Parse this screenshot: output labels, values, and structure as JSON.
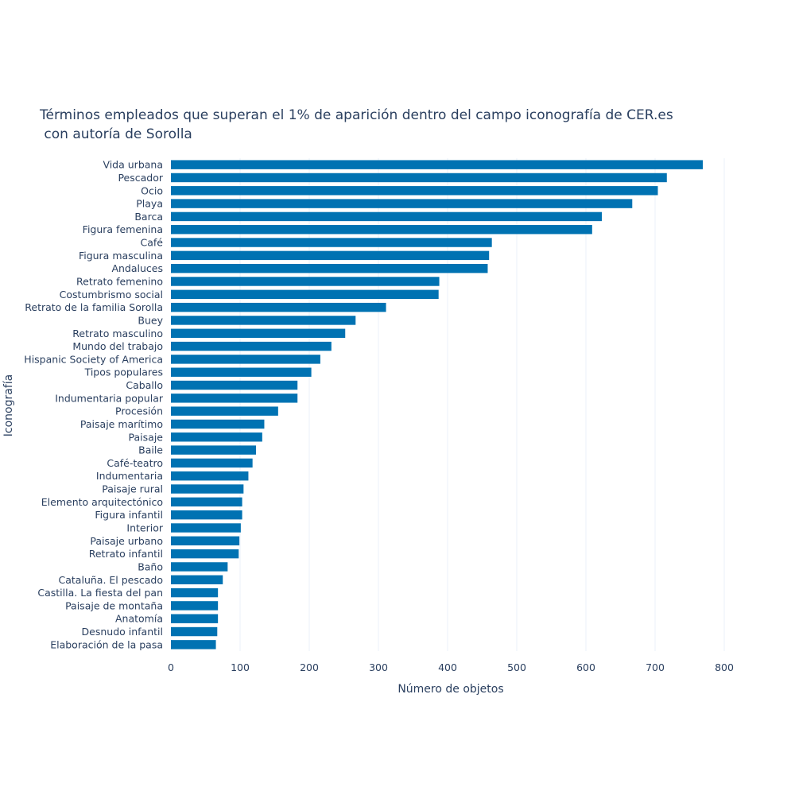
{
  "chart_data": {
    "type": "bar",
    "orientation": "horizontal",
    "title_line1": "Términos empleados que superan el 1% de aparición dentro del campo iconografía de CER.es",
    "title_line2": " con autoría de Sorolla",
    "xlabel": "Número de objetos",
    "ylabel": "Iconografía",
    "xlim": [
      0,
      800
    ],
    "xticks": [
      0,
      100,
      200,
      300,
      400,
      500,
      600,
      700,
      800
    ],
    "grid": true,
    "bar_color": "#0072b2",
    "categories": [
      "Vida urbana",
      "Pescador",
      "Ocio",
      "Playa",
      "Barca",
      "Figura femenina",
      "Café",
      "Figura masculina",
      "Andaluces",
      "Retrato femenino",
      "Costumbrismo social",
      "Retrato de la familia Sorolla",
      "Buey",
      "Retrato masculino",
      "Mundo del trabajo",
      "Hispanic Society of America",
      "Tipos populares",
      "Caballo",
      "Indumentaria popular",
      "Procesión",
      "Paisaje marítimo",
      "Paisaje",
      "Baile",
      "Café-teatro",
      "Indumentaria",
      "Paisaje rural",
      "Elemento arquitectónico",
      "Figura infantil",
      "Interior",
      "Paisaje urbano",
      "Retrato infantil",
      "Baño",
      "Cataluña. El pescado",
      "Castilla. La fiesta del pan",
      "Paisaje de montaña",
      "Anatomía",
      "Desnudo infantil",
      "Elaboración de la pasa"
    ],
    "values": [
      769,
      717,
      704,
      667,
      623,
      609,
      464,
      460,
      458,
      388,
      387,
      311,
      267,
      252,
      232,
      216,
      203,
      183,
      183,
      155,
      135,
      132,
      123,
      118,
      112,
      105,
      103,
      103,
      101,
      99,
      98,
      82,
      75,
      68,
      68,
      68,
      67,
      65
    ]
  }
}
